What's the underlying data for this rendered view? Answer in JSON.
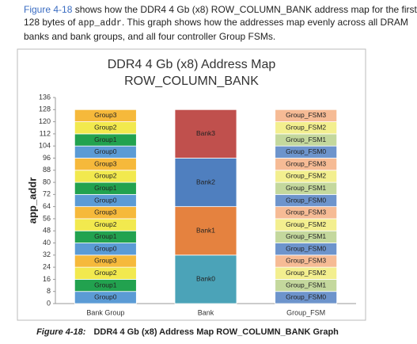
{
  "intro": {
    "link": "Figure 4-18",
    "line1": " shows how the DDR4 4 Gb (x8) ROW_COLUMN_BANK address map for the first",
    "line2a": "128 bytes of ",
    "code": "app_addr",
    "line2b": ". This graph shows how the addresses map evenly across all DRAM",
    "line3": "banks and bank groups, and all four controller Group FSMs."
  },
  "chart_data": {
    "type": "stacked-bar",
    "title": [
      "DDR4 4 Gb (x8) Address Map",
      "ROW_COLUMN_BANK"
    ],
    "y_label": "app_addr",
    "ylim": [
      0,
      136
    ],
    "yticks": [
      0,
      8,
      16,
      24,
      32,
      40,
      48,
      56,
      64,
      72,
      80,
      88,
      96,
      104,
      112,
      120,
      128,
      136
    ],
    "bars": [
      {
        "category": "Bank Group",
        "segments": [
          {
            "label": "Group0",
            "value": 8,
            "color": "#5b9bd5"
          },
          {
            "label": "Group1",
            "value": 8,
            "color": "#22a24f"
          },
          {
            "label": "Group2",
            "value": 8,
            "color": "#f2e94e"
          },
          {
            "label": "Group3",
            "value": 8,
            "color": "#f6b93b"
          },
          {
            "label": "Group0",
            "value": 8,
            "color": "#5b9bd5"
          },
          {
            "label": "Group1",
            "value": 8,
            "color": "#22a24f"
          },
          {
            "label": "Group2",
            "value": 8,
            "color": "#f2e94e"
          },
          {
            "label": "Group3",
            "value": 8,
            "color": "#f6b93b"
          },
          {
            "label": "Group0",
            "value": 8,
            "color": "#5b9bd5"
          },
          {
            "label": "Group1",
            "value": 8,
            "color": "#22a24f"
          },
          {
            "label": "Group2",
            "value": 8,
            "color": "#f2e94e"
          },
          {
            "label": "Group3",
            "value": 8,
            "color": "#f6b93b"
          },
          {
            "label": "Group0",
            "value": 8,
            "color": "#5b9bd5"
          },
          {
            "label": "Group1",
            "value": 8,
            "color": "#22a24f"
          },
          {
            "label": "Group2",
            "value": 8,
            "color": "#f2e94e"
          },
          {
            "label": "Group3",
            "value": 8,
            "color": "#f6b93b"
          }
        ]
      },
      {
        "category": "Bank",
        "segments": [
          {
            "label": "Bank0",
            "value": 32,
            "color": "#4ba3b8"
          },
          {
            "label": "Bank1",
            "value": 32,
            "color": "#e5823f"
          },
          {
            "label": "Bank2",
            "value": 32,
            "color": "#4f7fbf"
          },
          {
            "label": "Bank3",
            "value": 32,
            "color": "#c0504d"
          }
        ]
      },
      {
        "category": "Group_FSM",
        "segments": [
          {
            "label": "Group_FSM0",
            "value": 8,
            "color": "#6d94cc"
          },
          {
            "label": "Group_FSM1",
            "value": 8,
            "color": "#c4d89d"
          },
          {
            "label": "Group_FSM2",
            "value": 8,
            "color": "#f3ef8f"
          },
          {
            "label": "Group_FSM3",
            "value": 8,
            "color": "#f6bb95"
          },
          {
            "label": "Group_FSM0",
            "value": 8,
            "color": "#6d94cc"
          },
          {
            "label": "Group_FSM1",
            "value": 8,
            "color": "#c4d89d"
          },
          {
            "label": "Group_FSM2",
            "value": 8,
            "color": "#f3ef8f"
          },
          {
            "label": "Group_FSM3",
            "value": 8,
            "color": "#f6bb95"
          },
          {
            "label": "Group_FSM0",
            "value": 8,
            "color": "#6d94cc"
          },
          {
            "label": "Group_FSM1",
            "value": 8,
            "color": "#c4d89d"
          },
          {
            "label": "Group_FSM2",
            "value": 8,
            "color": "#f3ef8f"
          },
          {
            "label": "Group_FSM3",
            "value": 8,
            "color": "#f6bb95"
          },
          {
            "label": "Group_FSM0",
            "value": 8,
            "color": "#6d94cc"
          },
          {
            "label": "Group_FSM1",
            "value": 8,
            "color": "#c4d89d"
          },
          {
            "label": "Group_FSM2",
            "value": 8,
            "color": "#f3ef8f"
          },
          {
            "label": "Group_FSM3",
            "value": 8,
            "color": "#f6bb95"
          }
        ]
      }
    ]
  },
  "caption": {
    "number": "Figure 4-18:",
    "text": "DDR4 4 Gb (x8) Address Map ROW_COLUMN_BANK Graph"
  }
}
